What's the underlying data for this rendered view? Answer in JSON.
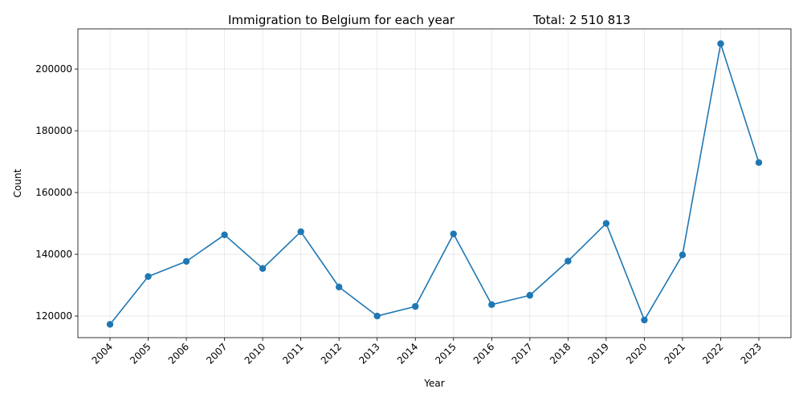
{
  "chart_data": {
    "type": "line",
    "title": "Immigration to Belgium for each year",
    "subtitle": "Total: 2 510 813",
    "xlabel": "Year",
    "ylabel": "Count",
    "categories": [
      "2004",
      "2005",
      "2006",
      "2007",
      "2010",
      "2011",
      "2012",
      "2013",
      "2014",
      "2015",
      "2016",
      "2017",
      "2018",
      "2019",
      "2020",
      "2021",
      "2022",
      "2023"
    ],
    "series": [
      {
        "values": [
          117300,
          132800,
          137700,
          146300,
          135400,
          147300,
          129400,
          120000,
          123100,
          146600,
          123700,
          126700,
          137800,
          150000,
          118700,
          139800,
          208200,
          169700
        ],
        "color": "#1f77b4"
      }
    ],
    "ylim": [
      113000,
      213000
    ],
    "yticks": [
      120000,
      140000,
      160000,
      180000,
      200000
    ],
    "ytick_labels": [
      "120000",
      "140000",
      "160000",
      "180000",
      "200000"
    ],
    "grid": true
  }
}
